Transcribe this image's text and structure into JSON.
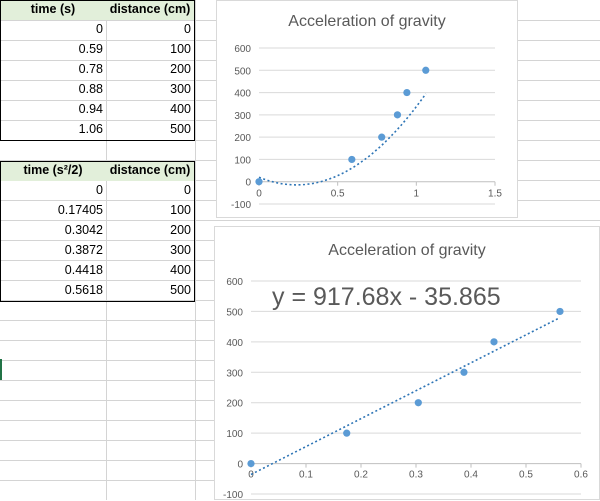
{
  "table1": {
    "headers": [
      "time (s)",
      "distance (cm)"
    ],
    "rows": [
      [
        "0",
        "0"
      ],
      [
        "0.59",
        "100"
      ],
      [
        "0.78",
        "200"
      ],
      [
        "0.88",
        "300"
      ],
      [
        "0.94",
        "400"
      ],
      [
        "1.06",
        "500"
      ]
    ]
  },
  "table2": {
    "headers": [
      "time (s²/2)",
      "distance (cm)"
    ],
    "rows": [
      [
        "0",
        "0"
      ],
      [
        "0.17405",
        "100"
      ],
      [
        "0.3042",
        "200"
      ],
      [
        "0.3872",
        "300"
      ],
      [
        "0.4418",
        "400"
      ],
      [
        "0.5618",
        "500"
      ]
    ]
  },
  "chart_data": [
    {
      "type": "scatter",
      "title": "Acceleration of gravity",
      "x": [
        0,
        0.59,
        0.78,
        0.88,
        0.94,
        1.06
      ],
      "y": [
        0,
        100,
        200,
        300,
        400,
        500
      ],
      "xlim": [
        0,
        1.5
      ],
      "ylim": [
        -100,
        600
      ],
      "x_ticks": [
        0,
        0.5,
        1,
        1.5
      ],
      "x_tick_labels": [
        "0",
        "0.5",
        "1",
        "1.5"
      ],
      "y_ticks": [
        -100,
        0,
        100,
        200,
        300,
        400,
        500,
        600
      ],
      "y_tick_labels": [
        "-100",
        "0",
        "100",
        "200",
        "300",
        "400",
        "500",
        "600"
      ],
      "trendline": {
        "type": "polynomial",
        "coefficients": [
          605,
          -288,
          20
        ],
        "x_range": [
          0,
          1.06
        ]
      },
      "grid": "horizontal",
      "legend": "none",
      "marker_color": "#5b9bd5",
      "trendline_color": "#2e75b6"
    },
    {
      "type": "scatter",
      "title": "Acceleration of gravity",
      "x": [
        0,
        0.17405,
        0.3042,
        0.3872,
        0.4418,
        0.5618
      ],
      "y": [
        0,
        100,
        200,
        300,
        400,
        500
      ],
      "xlim": [
        0,
        0.6
      ],
      "ylim": [
        -100,
        600
      ],
      "x_ticks": [
        0,
        0.1,
        0.2,
        0.3,
        0.4,
        0.5,
        0.6
      ],
      "x_tick_labels": [
        "0",
        "0.1",
        "0.2",
        "0.3",
        "0.4",
        "0.5",
        "0.6"
      ],
      "y_ticks": [
        -100,
        0,
        100,
        200,
        300,
        400,
        500,
        600
      ],
      "y_tick_labels": [
        "-100",
        "0",
        "100",
        "200",
        "300",
        "400",
        "500",
        "600"
      ],
      "trendline": {
        "type": "linear",
        "slope": 917.68,
        "intercept": -35.865,
        "x_range": [
          0,
          0.5618
        ]
      },
      "equation": "y = 917.68x - 35.865",
      "grid": "horizontal",
      "legend": "none",
      "marker_color": "#5b9bd5",
      "trendline_color": "#2e75b6"
    }
  ]
}
